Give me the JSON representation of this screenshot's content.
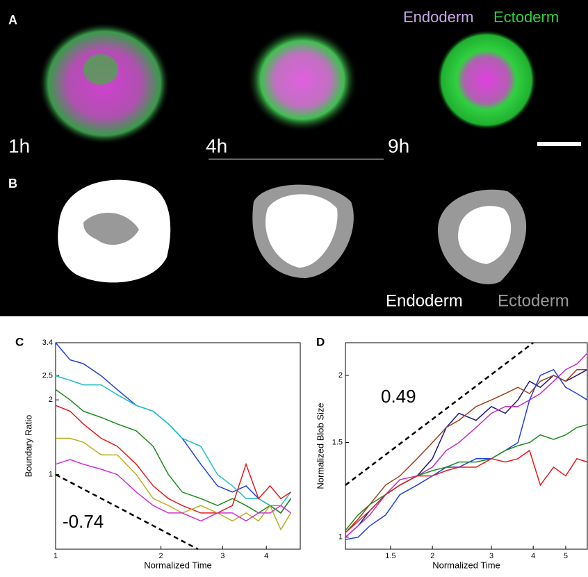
{
  "panels": {
    "A": {
      "label": "A",
      "legend": [
        "Endoderm",
        "Ectoderm"
      ],
      "times": [
        "1h",
        "4h",
        "9h"
      ]
    },
    "B": {
      "label": "B",
      "legend": [
        "Endoderm",
        "Ectoderm"
      ]
    }
  },
  "chart_data": [
    {
      "type": "line",
      "panel_label": "C",
      "x_label": "Normalized Time",
      "y_label": "Boundary Ratio",
      "log_x": true,
      "log_y": true,
      "grid": false,
      "xlim": [
        1,
        5
      ],
      "ylim": [
        0.5,
        3.4
      ],
      "xticks": [
        1,
        2,
        3,
        4
      ],
      "yticks": [
        1,
        2,
        2.5,
        3.4
      ],
      "x": [
        1,
        1.1,
        1.2,
        1.35,
        1.5,
        1.7,
        1.9,
        2.1,
        2.3,
        2.6,
        2.9,
        3.2,
        3.5,
        3.8,
        4.1,
        4.4,
        4.7
      ],
      "series": [
        {
          "color": "#1f3fe0",
          "values": [
            3.4,
            2.9,
            2.8,
            2.5,
            2.2,
            1.9,
            1.8,
            1.6,
            1.4,
            1.1,
            0.9,
            0.85,
            0.9,
            0.8,
            0.75,
            0.7,
            0.8
          ]
        },
        {
          "color": "#1fbfc8",
          "values": [
            2.5,
            2.4,
            2.3,
            2.3,
            2.1,
            1.9,
            1.8,
            1.6,
            1.4,
            1.3,
            1.0,
            0.9,
            0.8,
            0.8,
            0.75,
            0.75,
            0.85
          ]
        },
        {
          "color": "#1a8a1a",
          "values": [
            2.2,
            2.0,
            1.8,
            1.7,
            1.6,
            1.5,
            1.3,
            1.0,
            0.85,
            0.8,
            0.75,
            0.8,
            0.75,
            0.7,
            0.75,
            0.7,
            0.8
          ]
        },
        {
          "color": "#e81818",
          "values": [
            1.9,
            1.8,
            1.6,
            1.4,
            1.3,
            1.1,
            0.9,
            0.8,
            0.75,
            0.7,
            0.7,
            0.75,
            1.1,
            0.8,
            0.9,
            0.8,
            0.85
          ]
        },
        {
          "color": "#b8b020",
          "values": [
            1.4,
            1.4,
            1.35,
            1.2,
            1.2,
            1.0,
            0.8,
            0.75,
            0.7,
            0.75,
            0.7,
            0.65,
            0.7,
            0.65,
            0.75,
            0.6,
            0.7
          ]
        },
        {
          "color": "#d030d0",
          "values": [
            1.1,
            1.15,
            1.1,
            1.05,
            1.0,
            0.85,
            0.75,
            0.7,
            0.7,
            0.65,
            0.7,
            0.7,
            0.65,
            0.7,
            0.7,
            0.75,
            0.7
          ]
        }
      ],
      "reference": {
        "label": "-0.74",
        "x": [
          1,
          2.55
        ],
        "values": [
          1,
          0.5
        ]
      }
    },
    {
      "type": "line",
      "panel_label": "D",
      "x_label": "Normalized Time",
      "y_label": "Normalized Blob Size",
      "log_x": true,
      "log_y": true,
      "grid": false,
      "xlim": [
        1.1,
        5.8
      ],
      "ylim": [
        0.95,
        2.3
      ],
      "xticks": [
        1.5,
        2,
        3,
        4,
        5
      ],
      "yticks": [
        1,
        1.5,
        2
      ],
      "x": [
        1.1,
        1.2,
        1.3,
        1.45,
        1.6,
        1.8,
        2.0,
        2.2,
        2.4,
        2.7,
        3.0,
        3.3,
        3.6,
        3.9,
        4.2,
        4.6,
        5.0,
        5.4,
        5.8
      ],
      "series": [
        {
          "color": "#1a1a80",
          "values": [
            1.0,
            1.05,
            1.12,
            1.2,
            1.25,
            1.3,
            1.4,
            1.6,
            1.7,
            1.65,
            1.75,
            1.7,
            1.8,
            1.95,
            1.9,
            2.0,
            1.95,
            2.0,
            2.05
          ]
        },
        {
          "color": "#a0401a",
          "values": [
            1.02,
            1.08,
            1.15,
            1.25,
            1.3,
            1.4,
            1.5,
            1.6,
            1.65,
            1.75,
            1.8,
            1.85,
            1.9,
            1.85,
            1.95,
            2.0,
            1.95,
            2.05,
            2.05
          ]
        },
        {
          "color": "#c030c0",
          "values": [
            1.0,
            1.05,
            1.1,
            1.2,
            1.28,
            1.3,
            1.35,
            1.45,
            1.5,
            1.6,
            1.7,
            1.75,
            1.75,
            1.8,
            1.85,
            1.95,
            2.05,
            2.1,
            2.2
          ]
        },
        {
          "color": "#1f3fe0",
          "values": [
            0.99,
            1.0,
            1.05,
            1.1,
            1.2,
            1.25,
            1.3,
            1.35,
            1.35,
            1.4,
            1.4,
            1.45,
            1.5,
            1.8,
            2.0,
            2.05,
            1.9,
            1.85,
            1.8
          ]
        },
        {
          "color": "#1a8a1a",
          "values": [
            1.03,
            1.1,
            1.15,
            1.2,
            1.25,
            1.3,
            1.33,
            1.35,
            1.38,
            1.38,
            1.4,
            1.45,
            1.48,
            1.5,
            1.55,
            1.52,
            1.55,
            1.6,
            1.62
          ]
        },
        {
          "color": "#e81818",
          "values": [
            1.02,
            1.07,
            1.12,
            1.2,
            1.25,
            1.3,
            1.3,
            1.33,
            1.35,
            1.35,
            1.4,
            1.38,
            1.4,
            1.45,
            1.25,
            1.35,
            1.3,
            1.4,
            1.38
          ]
        }
      ],
      "reference": {
        "label": "0.49",
        "x": [
          1.1,
          4
        ],
        "values": [
          1.25,
          2.3
        ]
      }
    }
  ]
}
